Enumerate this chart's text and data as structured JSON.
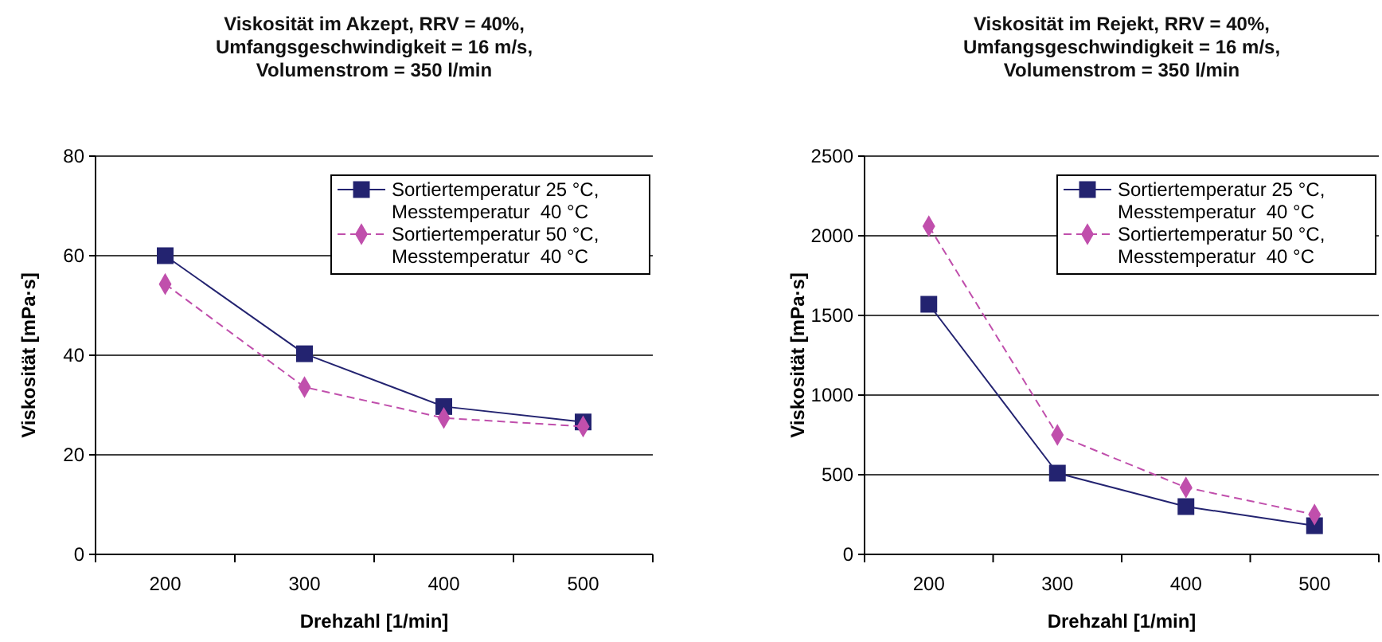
{
  "chart_data": [
    {
      "type": "line",
      "title": "Viskosität im Akzept, RRV = 40%,\nUmfangsgeschwindigkeit = 16 m/s,\nVolumenstrom = 350 l/min",
      "xlabel": "Drehzahl [1/min]",
      "ylabel": "Viskosität [mPa·s]",
      "categories": [
        "200",
        "300",
        "400",
        "500"
      ],
      "ylim": [
        0,
        80
      ],
      "yticks": [
        0,
        20,
        40,
        60,
        80
      ],
      "grid": "y",
      "legend": "top right",
      "series": [
        {
          "name": "Sortiertemperatur 25 °C,\nMesstemperatur  40 °C",
          "color": "#232370",
          "marker": "square",
          "line_style": "solid",
          "values": [
            60,
            40.3,
            29.7,
            26.6
          ]
        },
        {
          "name": "Sortiertemperatur 50 °C,\nMesstemperatur  40 °C",
          "color": "#c04fac",
          "marker": "diamond",
          "line_style": "dashed",
          "values": [
            54.3,
            33.6,
            27.4,
            25.7
          ]
        }
      ]
    },
    {
      "type": "line",
      "title": "Viskosität im Rejekt, RRV = 40%,\nUmfangsgeschwindigkeit = 16 m/s,\nVolumenstrom = 350 l/min",
      "xlabel": "Drehzahl [1/min]",
      "ylabel": "Viskosität [mPa·s]",
      "categories": [
        "200",
        "300",
        "400",
        "500"
      ],
      "ylim": [
        0,
        2500
      ],
      "yticks": [
        0,
        500,
        1000,
        1500,
        2000,
        2500
      ],
      "grid": "y",
      "legend": "top right",
      "series": [
        {
          "name": "Sortiertemperatur 25 °C,\nMesstemperatur  40 °C",
          "color": "#232370",
          "marker": "square",
          "line_style": "solid",
          "values": [
            1570,
            510,
            300,
            180
          ]
        },
        {
          "name": "Sortiertemperatur 50 °C,\nMesstemperatur  40 °C",
          "color": "#c04fac",
          "marker": "diamond",
          "line_style": "dashed",
          "values": [
            2060,
            750,
            420,
            250
          ]
        }
      ]
    }
  ]
}
